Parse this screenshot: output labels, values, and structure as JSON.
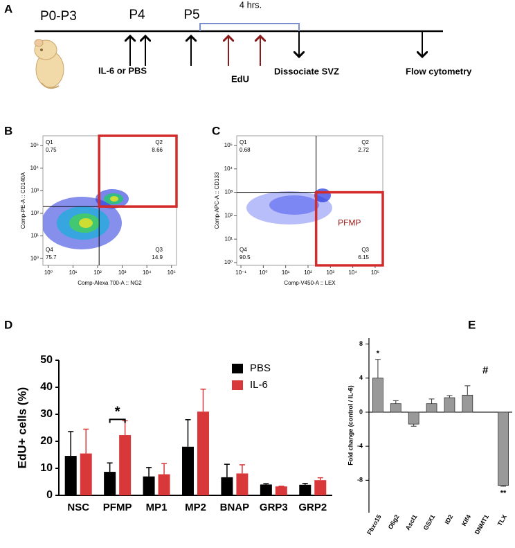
{
  "panel_labels": [
    "A",
    "B",
    "C",
    "D",
    "E"
  ],
  "timeline": {
    "stages": [
      "P0-P3",
      "P4",
      "P5"
    ],
    "interval": "4 hrs.",
    "events": [
      "IL-6 or PBS",
      "EdU",
      "Dissociate SVZ",
      "Flow cytometry"
    ]
  },
  "chart_data": [
    {
      "type": "flow",
      "log": true,
      "xlabel": "Comp-Alexa 700-A :: NG2",
      "ylabel": "Comp-PE-A :: CD140A",
      "xlim": [
        0.6,
        160000
      ],
      "ylim": [
        0.5,
        270000
      ],
      "xticks": [
        {
          "value": 1,
          "label": "10⁰"
        },
        {
          "value": 10,
          "label": "10¹"
        },
        {
          "value": 100,
          "label": "10²"
        },
        {
          "value": 1000,
          "label": "10³"
        },
        {
          "value": 10000,
          "label": "10⁴"
        },
        {
          "value": 100000,
          "label": "10⁵"
        }
      ],
      "yticks": [
        {
          "value": 1,
          "label": "10⁰"
        },
        {
          "value": 10,
          "label": "10¹"
        },
        {
          "value": 100,
          "label": "10²"
        },
        {
          "value": 1000,
          "label": "10³"
        },
        {
          "value": 10000,
          "label": "10⁴"
        },
        {
          "value": 100000,
          "label": "10⁵"
        }
      ],
      "gate": [
        115,
        200
      ],
      "quadrants": [
        {
          "name": "Q1",
          "value": 0.75
        },
        {
          "name": "Q2",
          "value": 8.66
        },
        {
          "name": "Q3",
          "value": 14.9
        },
        {
          "name": "Q4",
          "value": 75.7
        }
      ],
      "highlight": "Q2",
      "highlight_color": "#d42a2a"
    },
    {
      "type": "flow",
      "log": true,
      "xlabel": "Comp-V450-A :: LEX",
      "ylabel": "Comp-APC-A :: CD133",
      "xlim": [
        0.065,
        220000
      ],
      "ylim": [
        0.76,
        260000
      ],
      "xticks": [
        {
          "value": 0.1,
          "label": "10⁻¹"
        },
        {
          "value": 1,
          "label": "10⁰"
        },
        {
          "value": 10,
          "label": "10¹"
        },
        {
          "value": 100,
          "label": "10²"
        },
        {
          "value": 1000,
          "label": "10³"
        },
        {
          "value": 10000,
          "label": "10⁴"
        },
        {
          "value": 100000,
          "label": "10⁵"
        }
      ],
      "yticks": [
        {
          "value": 1,
          "label": "10⁰"
        },
        {
          "value": 10,
          "label": "10¹"
        },
        {
          "value": 100,
          "label": "10²"
        },
        {
          "value": 1000,
          "label": "10³"
        },
        {
          "value": 10000,
          "label": "10⁴"
        },
        {
          "value": 100000,
          "label": "10⁵"
        }
      ],
      "gate": [
        230,
        1000
      ],
      "quadrants": [
        {
          "name": "Q1",
          "value": 0.68
        },
        {
          "name": "Q2",
          "value": 2.72
        },
        {
          "name": "Q3",
          "value": 6.15
        },
        {
          "name": "Q4",
          "value": 90.5
        }
      ],
      "highlight": "Q3",
      "highlight_color": "#d42a2a",
      "highlight_label": "PFMP",
      "highlight_label_color": "#a01818"
    },
    {
      "type": "bar",
      "ylabel": "EdU+ cells (%)",
      "categories": [
        "NSC",
        "PFMP",
        "MP1",
        "MP2",
        "BNAP",
        "GRP3",
        "GRP2"
      ],
      "series": [
        {
          "name": "PBS",
          "color": "#000000",
          "values": [
            14.6,
            8.7,
            7.0,
            18.0,
            6.7,
            4.0,
            3.9
          ],
          "errors": [
            9.0,
            3.3,
            3.3,
            10.0,
            4.8,
            0.3,
            0.5
          ]
        },
        {
          "name": "IL-6",
          "color": "#d9383a",
          "values": [
            15.5,
            22.3,
            7.8,
            31.0,
            8.1,
            3.3,
            5.6
          ],
          "errors": [
            9.0,
            5.3,
            4.0,
            8.3,
            3.2,
            0.1,
            0.9
          ]
        }
      ],
      "ylim": [
        0,
        50
      ],
      "yticks": [
        0,
        10,
        20,
        30,
        40,
        50
      ],
      "legend": "upper-right",
      "annotations": [
        {
          "category": "PFMP",
          "text": "*"
        }
      ]
    },
    {
      "type": "bar",
      "ylabel": "Fold change (control / IL-6)",
      "categories": [
        "Fbxo15",
        "Olig2",
        "Ascl1",
        "GSX1",
        "ID2",
        "Klf4",
        "DNMT1",
        "TLX"
      ],
      "series": [
        {
          "color": "#999999",
          "values": [
            4.0,
            1.0,
            -1.4,
            1.0,
            1.7,
            2.0,
            null,
            -8.6
          ],
          "errors": [
            2.2,
            0.35,
            0.25,
            0.55,
            0.25,
            1.1,
            null,
            0.1
          ]
        }
      ],
      "ylim": [
        -11.8,
        8.7
      ],
      "yticks": [
        -8,
        -4,
        0,
        4,
        8
      ],
      "annotations": [
        {
          "category": "Fbxo15",
          "text": "*"
        },
        {
          "category": "DNMT1",
          "text": "#"
        },
        {
          "category": "TLX",
          "text": "**"
        }
      ]
    }
  ]
}
